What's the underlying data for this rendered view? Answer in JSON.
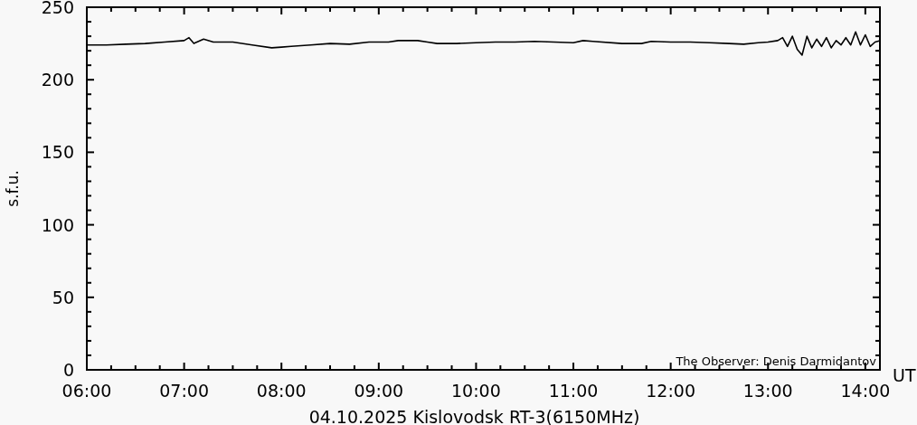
{
  "chart_data": {
    "type": "line",
    "ylabel": "s.f.u.",
    "xlabel": "UT",
    "annotations": [
      "04.10.2025 Kislovodsk RT-3(6150MHz)",
      "The Observer: Denis Darmidantov"
    ],
    "xlim": [
      6,
      14.15
    ],
    "ylim": [
      0,
      250
    ],
    "xticks": [
      {
        "value": 6,
        "label": "06:00"
      },
      {
        "value": 6.25,
        "label": null
      },
      {
        "value": 6.5,
        "label": null
      },
      {
        "value": 6.75,
        "label": null
      },
      {
        "value": 7,
        "label": "07:00"
      },
      {
        "value": 7.25,
        "label": null
      },
      {
        "value": 7.5,
        "label": null
      },
      {
        "value": 7.75,
        "label": null
      },
      {
        "value": 8,
        "label": "08:00"
      },
      {
        "value": 8.25,
        "label": null
      },
      {
        "value": 8.5,
        "label": null
      },
      {
        "value": 8.75,
        "label": null
      },
      {
        "value": 9,
        "label": "09:00"
      },
      {
        "value": 9.25,
        "label": null
      },
      {
        "value": 9.5,
        "label": null
      },
      {
        "value": 9.75,
        "label": null
      },
      {
        "value": 10,
        "label": "10:00"
      },
      {
        "value": 10.25,
        "label": null
      },
      {
        "value": 10.5,
        "label": null
      },
      {
        "value": 10.75,
        "label": null
      },
      {
        "value": 11,
        "label": "11:00"
      },
      {
        "value": 11.25,
        "label": null
      },
      {
        "value": 11.5,
        "label": null
      },
      {
        "value": 11.75,
        "label": null
      },
      {
        "value": 12,
        "label": "12:00"
      },
      {
        "value": 12.25,
        "label": null
      },
      {
        "value": 12.5,
        "label": null
      },
      {
        "value": 12.75,
        "label": null
      },
      {
        "value": 13,
        "label": "13:00"
      },
      {
        "value": 13.25,
        "label": null
      },
      {
        "value": 13.5,
        "label": null
      },
      {
        "value": 13.75,
        "label": null
      },
      {
        "value": 14,
        "label": "14:00"
      }
    ],
    "yticks": [
      0,
      {
        "value": 10,
        "label": null
      },
      {
        "value": 20,
        "label": null
      },
      {
        "value": 30,
        "label": null
      },
      {
        "value": 40,
        "label": null
      },
      50,
      {
        "value": 60,
        "label": null
      },
      {
        "value": 70,
        "label": null
      },
      {
        "value": 80,
        "label": null
      },
      {
        "value": 90,
        "label": null
      },
      100,
      {
        "value": 110,
        "label": null
      },
      {
        "value": 120,
        "label": null
      },
      {
        "value": 130,
        "label": null
      },
      {
        "value": 140,
        "label": null
      },
      150,
      {
        "value": 160,
        "label": null
      },
      {
        "value": 170,
        "label": null
      },
      {
        "value": 180,
        "label": null
      },
      {
        "value": 190,
        "label": null
      },
      200,
      {
        "value": 210,
        "label": null
      },
      {
        "value": 220,
        "label": null
      },
      {
        "value": 230,
        "label": null
      },
      {
        "value": 240,
        "label": null
      },
      250
    ],
    "grid": false,
    "line_style": "solid",
    "series": [
      {
        "color": "#000000",
        "x": [
          6.0,
          6.2,
          6.4,
          6.6,
          6.8,
          7.0,
          7.05,
          7.1,
          7.2,
          7.3,
          7.5,
          7.7,
          7.9,
          8.0,
          8.1,
          8.3,
          8.5,
          8.7,
          8.9,
          9.1,
          9.2,
          9.4,
          9.5,
          9.6,
          9.8,
          10.0,
          10.2,
          10.4,
          10.6,
          10.8,
          11.0,
          11.1,
          11.2,
          11.5,
          11.7,
          11.8,
          12.0,
          12.2,
          12.4,
          12.6,
          12.75,
          12.9,
          13.0,
          13.1,
          13.15,
          13.2,
          13.25,
          13.3,
          13.35,
          13.4,
          13.45,
          13.5,
          13.55,
          13.6,
          13.65,
          13.7,
          13.75,
          13.8,
          13.85,
          13.9,
          13.95,
          14.0,
          14.05,
          14.1,
          14.15
        ],
        "values": [
          224,
          224,
          224.5,
          225,
          226,
          227,
          229,
          225,
          228,
          226,
          226,
          224,
          222,
          222.5,
          223,
          224,
          225,
          224.5,
          226,
          226,
          227,
          227,
          226,
          225,
          225,
          225.5,
          226,
          226,
          226.5,
          226,
          225.5,
          227,
          226.5,
          225,
          225,
          226.5,
          226,
          226,
          225.5,
          225,
          224.5,
          225.5,
          226,
          227,
          229,
          223,
          230,
          221,
          217,
          230,
          222,
          228,
          223,
          229,
          222,
          227,
          224,
          229,
          224,
          233,
          224,
          231,
          223,
          226,
          227
        ]
      }
    ]
  }
}
